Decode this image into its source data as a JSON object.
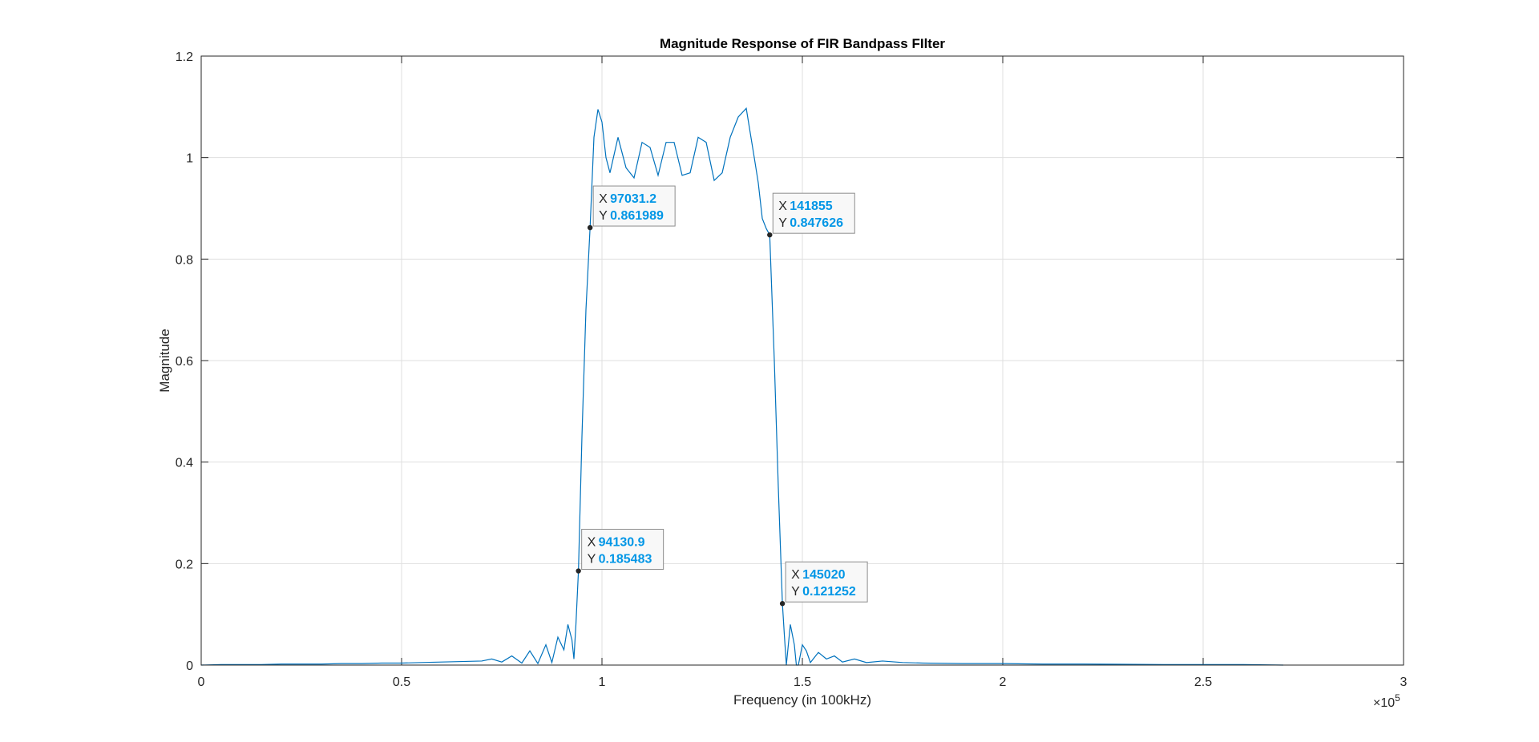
{
  "colors": {
    "line": "#0072bd",
    "grid": "#dfdfdf",
    "axis": "#262626",
    "tip_value": "#0096e6"
  },
  "chart_data": {
    "type": "line",
    "title": "Magnitude Response of FIR Bandpass FIlter",
    "xlabel": "Frequency (in 100kHz)",
    "ylabel": "Magnitude",
    "xlim": [
      0,
      300000
    ],
    "ylim": [
      0,
      1.2
    ],
    "x_exponent_label": "×10",
    "x_exponent_power": "5",
    "xticks": [
      0,
      50000,
      100000,
      150000,
      200000,
      250000,
      300000
    ],
    "xtick_labels": [
      "0",
      "0.5",
      "1",
      "1.5",
      "2",
      "2.5",
      "3"
    ],
    "yticks": [
      0,
      0.2,
      0.4,
      0.6,
      0.8,
      1.0,
      1.2
    ],
    "ytick_labels": [
      "0",
      "0.2",
      "0.4",
      "0.6",
      "0.8",
      "1",
      "1.2"
    ],
    "grid": true,
    "series": [
      {
        "x": [
          0,
          5000,
          10000,
          15000,
          20000,
          25000,
          30000,
          35000,
          40000,
          45000,
          50000,
          55000,
          60000,
          65000,
          70000,
          72500,
          75000,
          77500,
          80000,
          82000,
          84000,
          86000,
          87500,
          89000,
          90500,
          91500,
          92500,
          93000,
          93500,
          94130.9,
          95000,
          96000,
          97031.2,
          98000,
          99000,
          100000,
          101000,
          102000,
          104000,
          106000,
          108000,
          110000,
          112000,
          114000,
          116000,
          118000,
          120000,
          122000,
          124000,
          126000,
          128000,
          130000,
          132000,
          134000,
          136000,
          138000,
          139000,
          140000,
          141000,
          141855,
          143000,
          144000,
          145020,
          145500,
          146000,
          147000,
          148000,
          148500,
          149000,
          150000,
          151000,
          152000,
          154000,
          156000,
          158000,
          160000,
          163000,
          166000,
          170000,
          175000,
          180000,
          190000,
          200000,
          210000,
          220000,
          240000,
          260000,
          270000
        ],
        "y": [
          0,
          0.001,
          0.001,
          0.001,
          0.002,
          0.002,
          0.002,
          0.003,
          0.003,
          0.004,
          0.004,
          0.005,
          0.006,
          0.007,
          0.008,
          0.012,
          0.006,
          0.018,
          0.004,
          0.028,
          0.003,
          0.04,
          0.005,
          0.055,
          0.03,
          0.08,
          0.05,
          0.012,
          0.08,
          0.185483,
          0.45,
          0.7,
          0.861989,
          1.04,
          1.095,
          1.07,
          1.0,
          0.97,
          1.04,
          0.98,
          0.96,
          1.03,
          1.02,
          0.965,
          1.03,
          1.03,
          0.965,
          0.97,
          1.04,
          1.03,
          0.955,
          0.97,
          1.04,
          1.08,
          1.097,
          1.0,
          0.95,
          0.88,
          0.86,
          0.847626,
          0.6,
          0.35,
          0.121252,
          0.06,
          0.0,
          0.08,
          0.04,
          0.0,
          0.0,
          0.04,
          0.028,
          0.005,
          0.025,
          0.012,
          0.018,
          0.006,
          0.012,
          0.005,
          0.008,
          0.005,
          0.004,
          0.003,
          0.003,
          0.002,
          0.002,
          0.001,
          0.001,
          0.0
        ]
      }
    ],
    "datatips": [
      {
        "x_label": "X",
        "y_label": "Y",
        "x": 97031.2,
        "y": 0.861989,
        "x_text": "97031.2",
        "y_text": "0.861989"
      },
      {
        "x_label": "X",
        "y_label": "Y",
        "x": 141855,
        "y": 0.847626,
        "x_text": "141855",
        "y_text": "0.847626"
      },
      {
        "x_label": "X",
        "y_label": "Y",
        "x": 94130.9,
        "y": 0.185483,
        "x_text": "94130.9",
        "y_text": "0.185483"
      },
      {
        "x_label": "X",
        "y_label": "Y",
        "x": 145020,
        "y": 0.121252,
        "x_text": "145020",
        "y_text": "0.121252"
      }
    ]
  }
}
